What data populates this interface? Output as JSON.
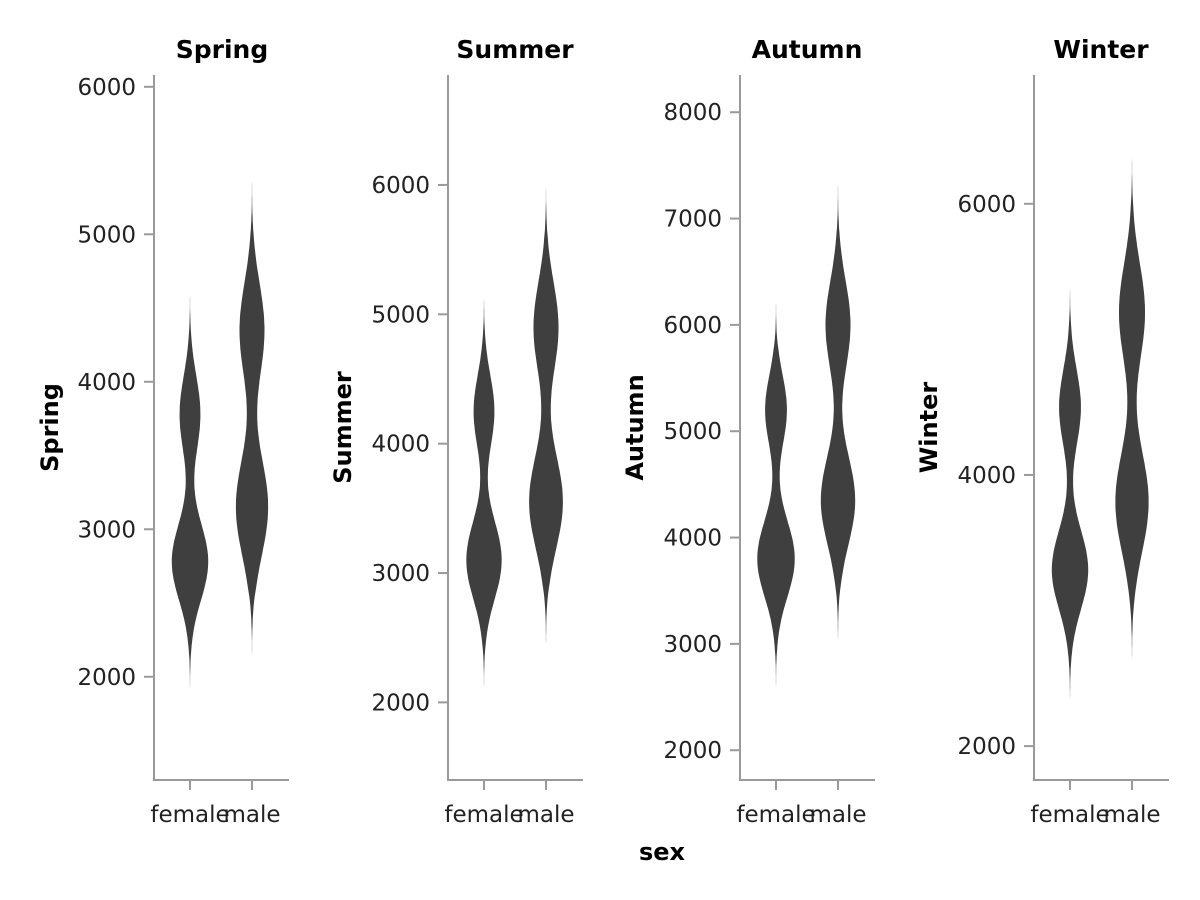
{
  "chart_data": {
    "type": "violin",
    "xlabel": "sex",
    "colors": {
      "violin": "#3f3f3f",
      "axis": "#9a9a9a"
    },
    "panels": [
      {
        "title": "Spring",
        "ylabel": "Spring",
        "ylim": [
          1300,
          6080
        ],
        "yticks": [
          2000,
          3000,
          4000,
          5000,
          6000
        ],
        "categories": [
          "female",
          "male"
        ],
        "violins": [
          {
            "category": "female",
            "min": 1650,
            "max": 4850,
            "modes": [
              {
                "at": 2780,
                "width": 0.7,
                "sd": 260
              },
              {
                "at": 3780,
                "width": 0.4,
                "sd": 260
              }
            ]
          },
          {
            "category": "male",
            "min": 2000,
            "max": 5600,
            "modes": [
              {
                "at": 3150,
                "width": 0.62,
                "sd": 330
              },
              {
                "at": 4350,
                "width": 0.48,
                "sd": 320
              }
            ]
          }
        ]
      },
      {
        "title": "Summer",
        "ylabel": "Summer",
        "ylim": [
          1400,
          6850
        ],
        "yticks": [
          2000,
          3000,
          4000,
          5000,
          6000
        ],
        "categories": [
          "female",
          "male"
        ],
        "violins": [
          {
            "category": "female",
            "min": 1850,
            "max": 5450,
            "modes": [
              {
                "at": 3100,
                "width": 0.68,
                "sd": 300
              },
              {
                "at": 4250,
                "width": 0.4,
                "sd": 280
              }
            ]
          },
          {
            "category": "male",
            "min": 2250,
            "max": 6250,
            "modes": [
              {
                "at": 3550,
                "width": 0.65,
                "sd": 360
              },
              {
                "at": 4900,
                "width": 0.48,
                "sd": 350
              }
            ]
          }
        ]
      },
      {
        "title": "Autumn",
        "ylabel": "Autumn",
        "ylim": [
          1720,
          8350
        ],
        "yticks": [
          2000,
          3000,
          4000,
          5000,
          6000,
          7000,
          8000
        ],
        "categories": [
          "female",
          "male"
        ],
        "violins": [
          {
            "category": "female",
            "min": 2250,
            "max": 6450,
            "modes": [
              {
                "at": 3800,
                "width": 0.72,
                "sd": 360
              },
              {
                "at": 5200,
                "width": 0.42,
                "sd": 330
              }
            ]
          },
          {
            "category": "male",
            "min": 2750,
            "max": 7650,
            "modes": [
              {
                "at": 4350,
                "width": 0.66,
                "sd": 420
              },
              {
                "at": 6000,
                "width": 0.48,
                "sd": 420
              }
            ]
          }
        ]
      },
      {
        "title": "Winter",
        "ylabel": "Winter",
        "ylim": [
          1750,
          6950
        ],
        "yticks": [
          2000,
          4000,
          6000
        ],
        "categories": [
          "female",
          "male"
        ],
        "violins": [
          {
            "category": "female",
            "min": 2000,
            "max": 5750,
            "modes": [
              {
                "at": 3300,
                "width": 0.7,
                "sd": 290
              },
              {
                "at": 4500,
                "width": 0.42,
                "sd": 280
              }
            ]
          },
          {
            "category": "male",
            "min": 2350,
            "max": 6700,
            "modes": [
              {
                "at": 3800,
                "width": 0.64,
                "sd": 370
              },
              {
                "at": 5200,
                "width": 0.5,
                "sd": 360
              }
            ]
          }
        ]
      }
    ]
  }
}
